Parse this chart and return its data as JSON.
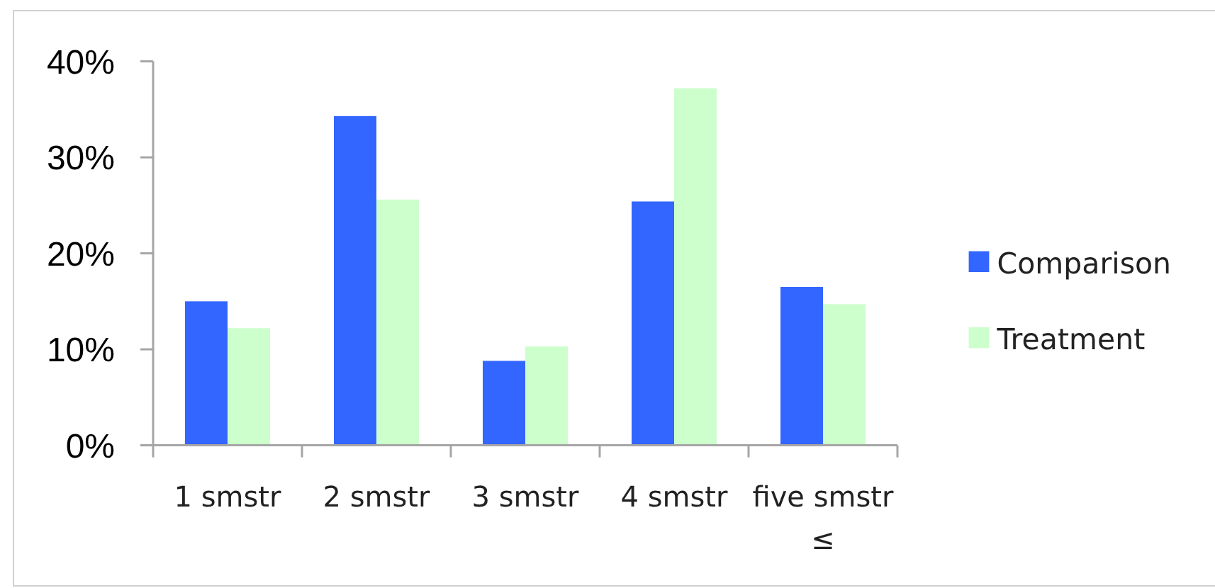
{
  "chart_data": {
    "type": "bar",
    "categories": [
      "1 smstr",
      "2 smstr",
      "3 smstr",
      "4 smstr",
      "five smstr ≤"
    ],
    "series": [
      {
        "name": "Comparison",
        "color": "#3366ff",
        "values": [
          15.0,
          34.3,
          8.8,
          25.4,
          16.5
        ]
      },
      {
        "name": "Treatment",
        "color": "#ccffcc",
        "values": [
          12.2,
          25.6,
          10.3,
          37.2,
          14.7
        ]
      }
    ],
    "ylim": [
      0,
      40
    ],
    "yticks": [
      {
        "value": 0,
        "label": "0%"
      },
      {
        "value": 10,
        "label": "10%"
      },
      {
        "value": 20,
        "label": "20%"
      },
      {
        "value": 30,
        "label": "30%"
      },
      {
        "value": 40,
        "label": "40%"
      }
    ],
    "legend": "right"
  }
}
